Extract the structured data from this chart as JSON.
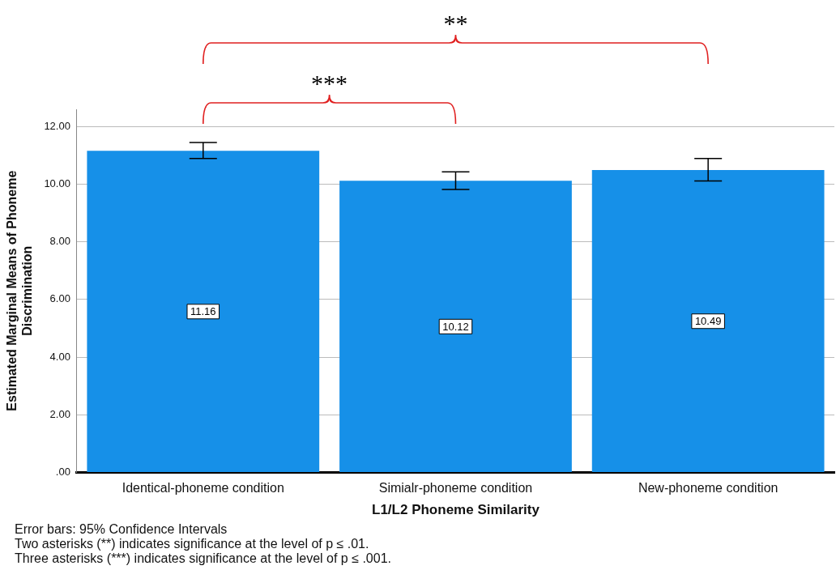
{
  "chart_data": {
    "type": "bar",
    "categories": [
      "Identical-phoneme condition",
      "Simialr-phoneme condition",
      "New-phoneme condition"
    ],
    "values": [
      11.16,
      10.12,
      10.49
    ],
    "errors": [
      [
        10.89,
        11.45
      ],
      [
        9.82,
        10.43
      ],
      [
        10.11,
        10.89
      ]
    ],
    "color": "#1690e8",
    "data_labels": true,
    "xlabel": "L1/L2 Phoneme Similarity",
    "ylabel": "Estimated Marginal Means of Phoneme Discrimination",
    "ylim": [
      0,
      12.6
    ],
    "yticks": [
      {
        "value": 0,
        "label": ".00"
      },
      {
        "value": 2,
        "label": "2.00"
      },
      {
        "value": 4,
        "label": "4.00"
      },
      {
        "value": 6,
        "label": "6.00"
      },
      {
        "value": 8,
        "label": "8.00"
      },
      {
        "value": 10,
        "label": "10.00"
      },
      {
        "value": 12,
        "label": "12.00"
      }
    ],
    "grid": "y",
    "legend": false,
    "annotations": [
      "**",
      "***",
      "Error bars: 95% Confidence Intervals",
      "Two asterisks (**) indicates significance at the level of p ≤ .01.",
      "Three asterisks (***) indicates significance at the level of p ≤ .001."
    ]
  }
}
